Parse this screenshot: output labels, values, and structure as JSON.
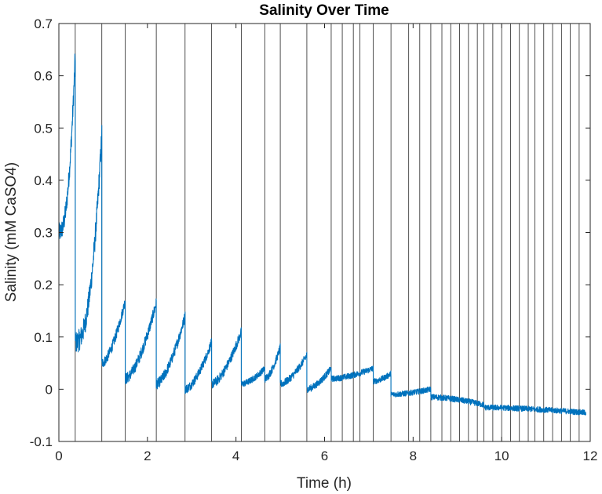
{
  "chart_data": {
    "type": "line",
    "title": "Salinity Over Time",
    "xlabel": "Time (h)",
    "ylabel": "Salinity (mM CaSO4)",
    "xlim": [
      0,
      12
    ],
    "ylim": [
      -0.1,
      0.7
    ],
    "xticks": [
      0,
      2,
      4,
      6,
      8,
      10,
      12
    ],
    "xtick_labels": [
      "0",
      "2",
      "4",
      "6",
      "8",
      "10",
      "12"
    ],
    "yticks": [
      -0.1,
      0,
      0.1,
      0.2,
      0.3,
      0.4,
      0.5,
      0.6,
      0.7
    ],
    "ytick_labels": [
      "-0.1",
      "0",
      "0.1",
      "0.2",
      "0.3",
      "0.4",
      "0.5",
      "0.6",
      "0.7"
    ],
    "grid": false,
    "line_color": "#0072BD",
    "vline_color": "#000000",
    "vlines": [
      0.37,
      0.97,
      1.5,
      2.2,
      2.85,
      3.45,
      4.12,
      4.65,
      5.0,
      5.6,
      6.15,
      6.4,
      6.65,
      6.8,
      7.1,
      7.5,
      7.9,
      8.15,
      8.4,
      8.65,
      8.85,
      9.05,
      9.25,
      9.45,
      9.6,
      9.8,
      10.0,
      10.2,
      10.4,
      10.6,
      10.75,
      10.95,
      11.15,
      11.35,
      11.55,
      11.75
    ],
    "segments": [
      {
        "t0": 0.0,
        "t1": 0.37,
        "v0": 0.3,
        "v1": 0.64
      },
      {
        "t0": 0.37,
        "t1": 0.97,
        "v0": 0.09,
        "v1": 0.49
      },
      {
        "t0": 0.97,
        "t1": 1.5,
        "v0": 0.05,
        "v1": 0.17
      },
      {
        "t0": 1.5,
        "t1": 2.2,
        "v0": 0.02,
        "v1": 0.165
      },
      {
        "t0": 2.2,
        "t1": 2.85,
        "v0": 0.01,
        "v1": 0.14
      },
      {
        "t0": 2.85,
        "t1": 3.45,
        "v0": 0.0,
        "v1": 0.09
      },
      {
        "t0": 3.45,
        "t1": 4.12,
        "v0": 0.01,
        "v1": 0.11
      },
      {
        "t0": 4.12,
        "t1": 4.65,
        "v0": 0.01,
        "v1": 0.04
      },
      {
        "t0": 4.65,
        "t1": 5.0,
        "v0": 0.02,
        "v1": 0.08
      },
      {
        "t0": 5.0,
        "t1": 5.6,
        "v0": 0.01,
        "v1": 0.065
      },
      {
        "t0": 5.6,
        "t1": 6.15,
        "v0": 0.0,
        "v1": 0.04
      },
      {
        "t0": 6.15,
        "t1": 7.1,
        "v0": 0.02,
        "v1": 0.04
      },
      {
        "t0": 7.1,
        "t1": 7.5,
        "v0": 0.015,
        "v1": 0.03
      },
      {
        "t0": 7.5,
        "t1": 8.4,
        "v0": -0.01,
        "v1": 0.0
      },
      {
        "t0": 8.4,
        "t1": 9.6,
        "v0": -0.015,
        "v1": -0.03
      },
      {
        "t0": 9.6,
        "t1": 11.9,
        "v0": -0.035,
        "v1": -0.045
      }
    ]
  }
}
